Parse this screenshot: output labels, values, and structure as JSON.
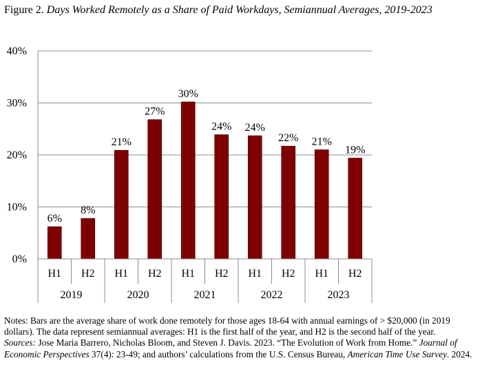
{
  "title": {
    "prefix": "Figure 2.",
    "main": "Days Worked Remotely as a Share of Paid Workdays, Semiannual Averages, 2019-2023"
  },
  "chart_data": {
    "type": "bar",
    "categories": [
      "H1",
      "H2",
      "H1",
      "H2",
      "H1",
      "H2",
      "H1",
      "H2",
      "H1",
      "H2"
    ],
    "groups": [
      {
        "label": "2019",
        "size": 2
      },
      {
        "label": "2020",
        "size": 2
      },
      {
        "label": "2021",
        "size": 2
      },
      {
        "label": "2022",
        "size": 2
      },
      {
        "label": "2023",
        "size": 2
      }
    ],
    "values": [
      6.2,
      7.8,
      20.9,
      26.8,
      30.2,
      23.9,
      23.7,
      21.7,
      21.0,
      19.4
    ],
    "data_labels": [
      "6%",
      "8%",
      "21%",
      "27%",
      "30%",
      "24%",
      "24%",
      "22%",
      "21%",
      "19%"
    ],
    "ylim": [
      0,
      40
    ],
    "yticks": [
      0,
      10,
      20,
      30,
      40
    ],
    "ytick_labels": [
      "0%",
      "10%",
      "20%",
      "30%",
      "40%"
    ],
    "grid": true,
    "bar_color": "#7f0000"
  },
  "notes": {
    "text": "Notes: Bars are the average share of work done remotely for those ages 18-64 with annual earnings of > $20,000 (in 2019 dollars). The data represent semiannual averages: H1 is the first half of the year, and H2 is the second half of the year.",
    "sources_label": "Sources:",
    "sources_1": " Jose Maria Barrero, Nicholas Bloom, and Steven J. Davis. 2023. “The Evolution of Work from Home.” ",
    "sources_journal": "Journal of Economic Perspectives",
    "sources_2": " 37(4): 23-49; and authors’ calculations from the U.S. Census Bureau, ",
    "sources_survey": "American Time Use Survey",
    "sources_3": ". 2024."
  }
}
